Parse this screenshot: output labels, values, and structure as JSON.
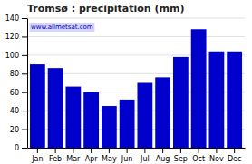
{
  "chart_data": {
    "type": "bar",
    "title": "Tromsø : precipitation (mm)",
    "categories": [
      "Jan",
      "Feb",
      "Mar",
      "Apr",
      "May",
      "Jun",
      "Jul",
      "Aug",
      "Sep",
      "Oct",
      "Nov",
      "Dec"
    ],
    "values": [
      90,
      86,
      66,
      60,
      45,
      52,
      70,
      76,
      98,
      128,
      104,
      104
    ],
    "color": "#0000cc",
    "ylim": [
      0,
      140
    ],
    "yticks": [
      0,
      20,
      40,
      60,
      80,
      100,
      120,
      140
    ],
    "grid": true,
    "annotations": [
      "www.allmetsat.com"
    ]
  }
}
